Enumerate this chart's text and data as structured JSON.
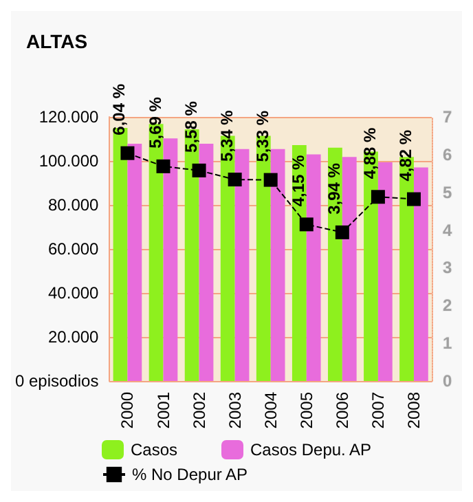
{
  "chart_data": {
    "type": "bar",
    "title": "ALTAS",
    "categories": [
      "2000",
      "2001",
      "2002",
      "2003",
      "2004",
      "2005",
      "2006",
      "2007",
      "2008"
    ],
    "series": [
      {
        "name": "Casos",
        "color": "#8ef01e",
        "values": [
          115000,
          116800,
          114400,
          111400,
          111400,
          107200,
          106000,
          104200,
          101800
        ]
      },
      {
        "name": "Casos Depu. AP",
        "color": "#e86cdc",
        "values": [
          107800,
          110200,
          107800,
          105400,
          105400,
          103000,
          101800,
          99400,
          97000
        ]
      },
      {
        "name": "% No Depur AP",
        "type": "line",
        "axis": "y2",
        "color": "#000000",
        "marker": "square",
        "line_style": "dashed",
        "values": [
          6.04,
          5.69,
          5.58,
          5.34,
          5.33,
          4.15,
          3.94,
          4.88,
          4.82
        ],
        "value_labels": [
          "6,04 %",
          "5,69 %",
          "5,58 %",
          "5,34 %",
          "5,33 %",
          "4,15 %",
          "3,94 %",
          "4,88 %",
          "4,82 %"
        ]
      }
    ],
    "ylim": [
      0,
      120000
    ],
    "yticks": [
      {
        "value": 0,
        "label": "0 episodios"
      },
      {
        "value": 20000,
        "label": "20.000"
      },
      {
        "value": 40000,
        "label": "40.000"
      },
      {
        "value": 60000,
        "label": "60.000"
      },
      {
        "value": 80000,
        "label": "80.000"
      },
      {
        "value": 100000,
        "label": "100.000"
      },
      {
        "value": 120000,
        "label": "120.000"
      }
    ],
    "y2lim": [
      0,
      7
    ],
    "y2ticks": [
      0,
      1,
      2,
      3,
      4,
      5,
      6,
      7
    ],
    "bands": [
      {
        "axis": "y",
        "from": 0,
        "to": 120000,
        "color": "#f7ead4"
      }
    ],
    "grid": "y",
    "legend": "bottom"
  }
}
